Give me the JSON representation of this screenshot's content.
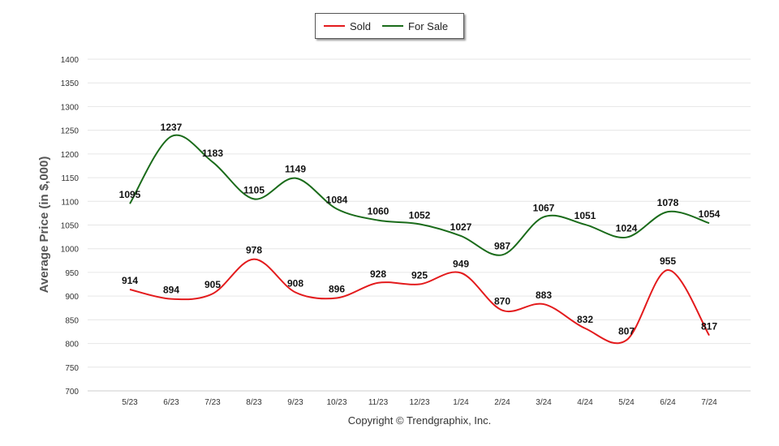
{
  "chart_data": {
    "type": "line",
    "categories": [
      "5/23",
      "6/23",
      "7/23",
      "8/23",
      "9/23",
      "10/23",
      "11/23",
      "12/23",
      "1/24",
      "2/24",
      "3/24",
      "4/24",
      "5/24",
      "6/24",
      "7/24"
    ],
    "series": [
      {
        "name": "Sold",
        "color": "#e31a1c",
        "values": [
          914,
          894,
          905,
          978,
          908,
          896,
          928,
          925,
          949,
          870,
          883,
          832,
          807,
          955,
          817
        ]
      },
      {
        "name": "For Sale",
        "color": "#1a6b1a",
        "values": [
          1095,
          1237,
          1183,
          1105,
          1149,
          1084,
          1060,
          1052,
          1027,
          987,
          1067,
          1051,
          1024,
          1078,
          1054
        ]
      }
    ],
    "ylabel": "Average Price (in $,000)",
    "ylim": [
      700,
      1400
    ],
    "yticks": [
      700,
      750,
      800,
      850,
      900,
      950,
      1000,
      1050,
      1100,
      1150,
      1200,
      1250,
      1300,
      1350,
      1400
    ],
    "grid": true,
    "legend_position": "top-center",
    "smooth": true
  },
  "copyright": "Copyright © Trendgraphix, Inc."
}
